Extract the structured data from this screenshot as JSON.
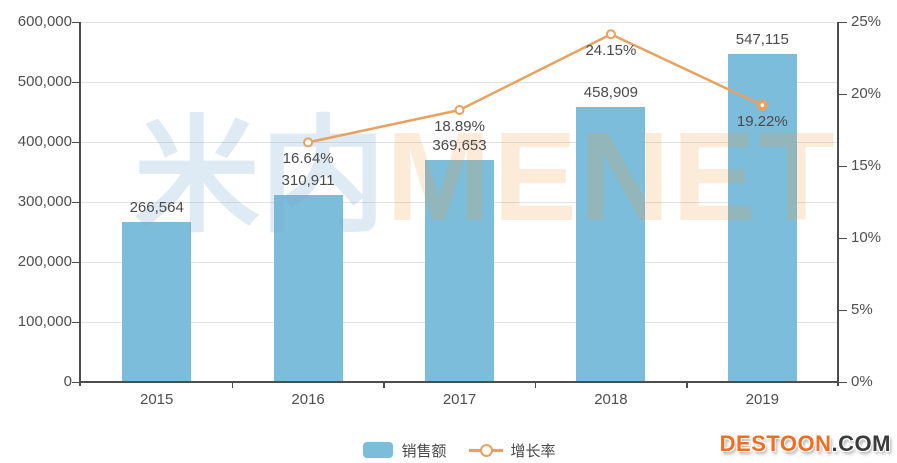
{
  "chart_data": {
    "type": "bar",
    "categories": [
      "2015",
      "2016",
      "2017",
      "2018",
      "2019"
    ],
    "series": [
      {
        "name": "销售额",
        "type": "bar",
        "axis": "left",
        "color": "#7bbdda",
        "values": [
          266564,
          310911,
          369653,
          458909,
          547115
        ],
        "labels": [
          "266,564",
          "310,911",
          "369,653",
          "458,909",
          "547,115"
        ]
      },
      {
        "name": "增长率",
        "type": "line",
        "axis": "right",
        "color": "#e9a161",
        "values": [
          null,
          16.64,
          18.89,
          24.15,
          19.22
        ],
        "labels": [
          null,
          "16.64%",
          "18.89%",
          "24.15%",
          "19.22%"
        ]
      }
    ],
    "left_axis": {
      "min": 0,
      "max": 600000,
      "step": 100000,
      "tick_labels": [
        "0",
        "100,000",
        "200,000",
        "300,000",
        "400,000",
        "500,000",
        "600,000"
      ]
    },
    "right_axis": {
      "min": 0,
      "max": 25,
      "step": 5,
      "tick_labels": [
        "0%",
        "5%",
        "10%",
        "15%",
        "20%",
        "25%"
      ]
    },
    "legend": [
      {
        "label": "销售额",
        "marker": "bar-swatch"
      },
      {
        "label": "增长率",
        "marker": "line-circle"
      }
    ],
    "title": "",
    "xlabel": "",
    "ylabel": "",
    "grid": true,
    "legend_position": "bottom-center",
    "colors": {
      "bar": "#7bbdda",
      "line": "#e9a161",
      "grid": "#e2e2e2",
      "axis": "#4d4d4d",
      "text": "#4a4a4a"
    }
  },
  "watermark": {
    "cn": "米内",
    "en": "MENET"
  },
  "footer_logo": {
    "main": "DESTOON",
    "suffix": ".COM"
  }
}
